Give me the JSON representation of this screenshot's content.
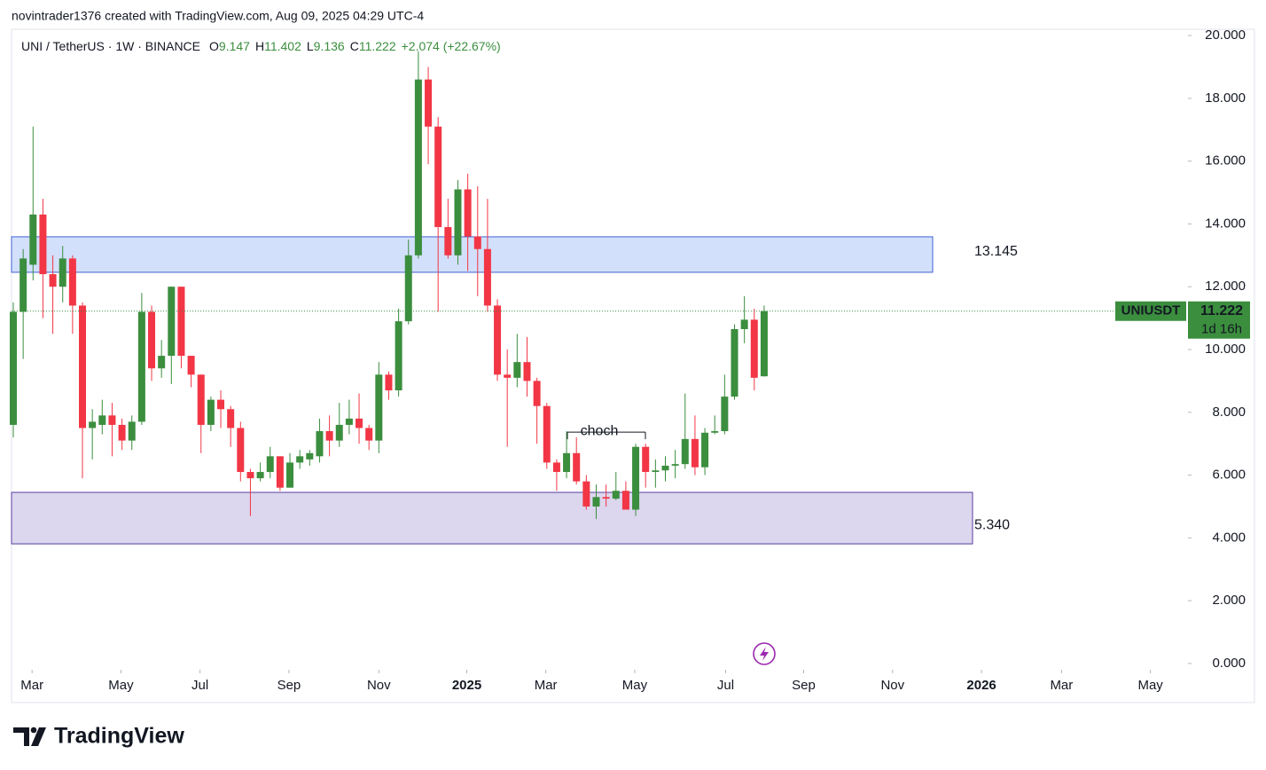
{
  "header": {
    "text": "novintrader1376 created with TradingView.com, Aug 09, 2025 04:29 UTC-4"
  },
  "chart_data": {
    "type": "candlestick",
    "title": "UNI / TetherUS · 1W · BINANCE",
    "legend_labels": {
      "open": "O",
      "high": "H",
      "low": "L",
      "close": "C"
    },
    "change": "+2.074 (+22.67%)",
    "up_color": "#3b8e3e",
    "down_color": "#f23645",
    "open": [
      7.6,
      11.2,
      12.7,
      14.3,
      12.4,
      12.0,
      12.9,
      11.4,
      7.5,
      7.6,
      7.9,
      7.6,
      7.1,
      7.7,
      11.2,
      9.4,
      9.8,
      12.0,
      9.8,
      9.2,
      7.6,
      8.4,
      8.1,
      7.5,
      6.1,
      5.9,
      6.1,
      6.6,
      5.6,
      6.4,
      6.5,
      6.6,
      7.4,
      7.1,
      7.6,
      7.8,
      7.5,
      7.1,
      9.2,
      8.7,
      10.9,
      13.0,
      18.6,
      17.1,
      13.9,
      13.0,
      15.1,
      13.6,
      13.2,
      11.4,
      9.2,
      9.1,
      9.6,
      9.0,
      8.2,
      6.4,
      6.1,
      6.7,
      5.8,
      5.0,
      5.3,
      5.25,
      5.5,
      4.9,
      6.9,
      6.1,
      6.15,
      6.3,
      6.35,
      7.15,
      6.25,
      7.35,
      7.4,
      8.5,
      10.65,
      10.95,
      9.147
    ],
    "high": [
      11.5,
      13.2,
      17.1,
      14.8,
      13.0,
      13.3,
      13.0,
      11.5,
      8.1,
      8.4,
      8.3,
      7.8,
      7.9,
      11.8,
      11.4,
      10.3,
      12.0,
      12.0,
      9.8,
      9.2,
      8.5,
      8.7,
      8.2,
      7.7,
      6.2,
      6.4,
      6.9,
      6.6,
      6.7,
      6.8,
      6.8,
      7.8,
      7.9,
      8.3,
      8.4,
      8.6,
      7.6,
      9.6,
      9.3,
      11.3,
      13.5,
      19.5,
      19.0,
      17.4,
      14.8,
      15.4,
      15.6,
      15.2,
      14.8,
      11.6,
      10.0,
      10.5,
      10.4,
      9.1,
      8.3,
      6.5,
      7.4,
      7.2,
      6.0,
      5.7,
      5.7,
      6.1,
      5.8,
      7.0,
      7.0,
      6.5,
      6.6,
      6.8,
      8.6,
      7.9,
      7.5,
      7.9,
      9.2,
      10.8,
      11.7,
      11.3,
      11.402
    ],
    "low": [
      7.2,
      9.7,
      12.2,
      11.0,
      10.5,
      11.5,
      10.5,
      5.9,
      6.5,
      7.3,
      6.6,
      6.8,
      6.8,
      7.6,
      9.0,
      9.1,
      8.9,
      9.4,
      8.8,
      6.7,
      7.4,
      7.5,
      6.9,
      5.8,
      4.7,
      5.8,
      5.9,
      5.5,
      5.6,
      6.2,
      6.3,
      6.4,
      6.6,
      6.9,
      7.3,
      7.0,
      6.8,
      6.7,
      8.4,
      8.5,
      10.8,
      12.9,
      15.9,
      11.2,
      12.9,
      12.7,
      12.5,
      11.7,
      11.2,
      9.0,
      6.9,
      8.8,
      8.5,
      7.0,
      6.2,
      5.5,
      5.9,
      5.7,
      4.9,
      4.6,
      5.0,
      5.2,
      4.9,
      4.7,
      5.6,
      5.6,
      5.8,
      5.9,
      6.2,
      6.0,
      6.0,
      7.3,
      7.3,
      8.4,
      10.2,
      8.7,
      9.136
    ],
    "close": [
      11.2,
      12.9,
      14.3,
      12.4,
      12.0,
      12.9,
      11.4,
      7.5,
      7.7,
      7.9,
      7.6,
      7.1,
      7.7,
      11.2,
      9.4,
      9.8,
      12.0,
      9.8,
      9.2,
      7.6,
      8.4,
      8.1,
      7.5,
      6.1,
      5.9,
      6.1,
      6.6,
      5.6,
      6.4,
      6.6,
      6.7,
      7.4,
      7.1,
      7.6,
      7.8,
      7.5,
      7.1,
      9.2,
      8.7,
      10.9,
      13.0,
      18.6,
      17.1,
      13.9,
      13.0,
      15.1,
      13.6,
      13.2,
      11.4,
      9.2,
      9.1,
      9.6,
      9.0,
      8.2,
      6.4,
      6.1,
      6.7,
      5.8,
      5.0,
      5.3,
      5.25,
      5.5,
      4.9,
      6.9,
      6.1,
      6.15,
      6.3,
      6.35,
      7.15,
      6.25,
      7.35,
      7.4,
      8.5,
      10.65,
      10.95,
      9.1,
      11.222
    ],
    "xlim": [
      -0.18,
      118.9
    ],
    "xticks": [
      {
        "value": 1.9,
        "label": "Mar"
      },
      {
        "value": 10.9,
        "label": "May"
      },
      {
        "value": 18.9,
        "label": "Jul"
      },
      {
        "value": 27.9,
        "label": "Sep"
      },
      {
        "value": 37.0,
        "label": "Nov"
      },
      {
        "value": 45.9,
        "label": "2025"
      },
      {
        "value": 53.9,
        "label": "Mar"
      },
      {
        "value": 62.9,
        "label": "May"
      },
      {
        "value": 72.1,
        "label": "Jul"
      },
      {
        "value": 80.0,
        "label": "Sep"
      },
      {
        "value": 89.0,
        "label": "Nov"
      },
      {
        "value": 98.0,
        "label": "2026"
      },
      {
        "value": 106.1,
        "label": "Mar"
      },
      {
        "value": 115.1,
        "label": "May"
      }
    ],
    "ylim": [
      -0.2,
      20.2
    ],
    "yticks": [
      {
        "value": 0,
        "label": "0.000"
      },
      {
        "value": 2,
        "label": "2.000"
      },
      {
        "value": 4,
        "label": "4.000"
      },
      {
        "value": 6,
        "label": "6.000"
      },
      {
        "value": 8,
        "label": "8.000"
      },
      {
        "value": 10,
        "label": "10.000"
      },
      {
        "value": 12,
        "label": "12.000"
      },
      {
        "value": 14,
        "label": "14.000"
      },
      {
        "value": 16,
        "label": "16.000"
      },
      {
        "value": 18,
        "label": "18.000"
      },
      {
        "value": 20,
        "label": "20.000"
      }
    ],
    "zones": [
      {
        "top": 13.59,
        "bottom": 12.46,
        "label": "13.145",
        "color": "#d3e0fb",
        "border": "#3f5fd6"
      },
      {
        "top": 5.45,
        "bottom": 3.81,
        "label": "5.340",
        "color": "#dcd6ee",
        "border": "#5a3fa0"
      }
    ],
    "choch": {
      "value": 7.37,
      "label": "choch"
    },
    "last_price": {
      "symbol": "UNIUSDT",
      "countdown": "1d 16h"
    }
  },
  "footer": {
    "brand": "TradingView"
  }
}
